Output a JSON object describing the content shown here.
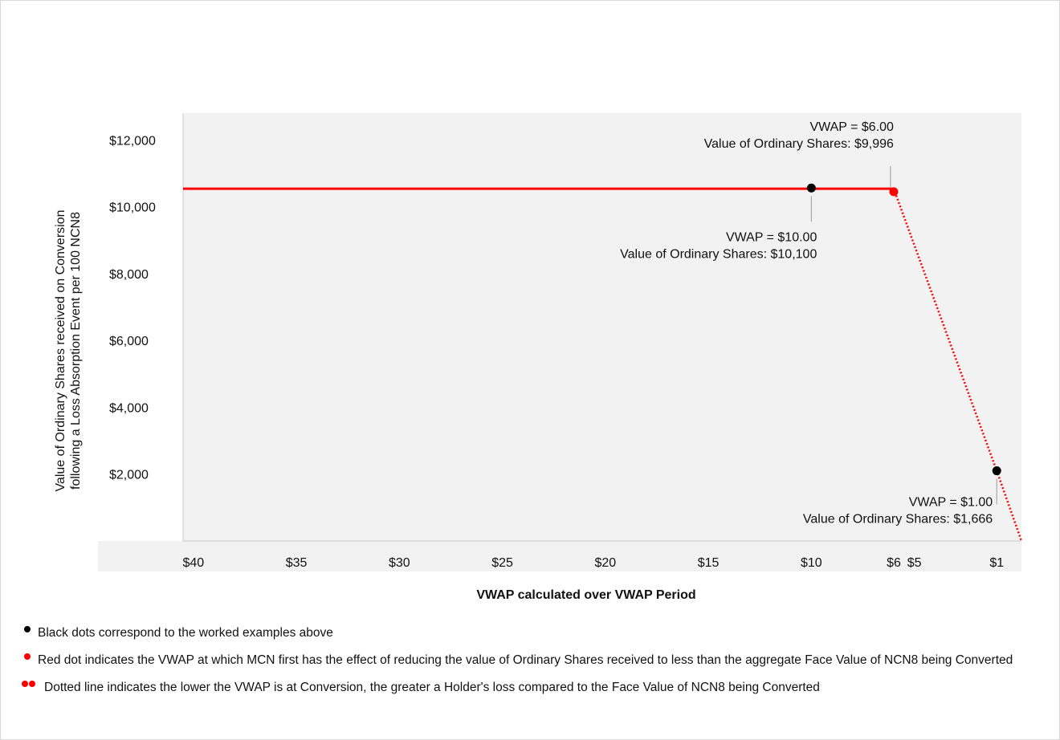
{
  "chart_data": {
    "type": "line",
    "xlabel": "VWAP calculated over VWAP Period",
    "ylabel": "Value of Ordinary Shares received on Conversion following a Loss Absorption Event per 100 NCN8",
    "x_tick_labels": [
      "$40",
      "$35",
      "$30",
      "$25",
      "$20",
      "$15",
      "$10",
      "$6",
      "$5",
      "$1"
    ],
    "x_tick_values": [
      40,
      35,
      30,
      25,
      20,
      15,
      10,
      6,
      5,
      1
    ],
    "x_axis_reversed": true,
    "xlim": [
      40.5,
      -0.2
    ],
    "y_tick_labels": [
      "$2,000",
      "$4,000",
      "$6,000",
      "$8,000",
      "$10,000",
      "$12,000"
    ],
    "y_tick_values": [
      2000,
      4000,
      6000,
      8000,
      10000,
      12000
    ],
    "ylim": [
      0,
      12800
    ],
    "grid": false,
    "plot_background": "#f2f2f2",
    "series": [
      {
        "style": "solid",
        "color": "#ff0000",
        "x": [
          40.5,
          6
        ],
        "y": [
          10540,
          10540
        ]
      },
      {
        "style": "dotted",
        "color": "#ff0000",
        "x": [
          6,
          1,
          -0.2
        ],
        "y": [
          10540,
          2100,
          0
        ]
      }
    ],
    "points": [
      {
        "x": 10,
        "y": 10560,
        "color": "#000000"
      },
      {
        "x": 6,
        "y": 10450,
        "color": "#ff0000"
      },
      {
        "x": 1,
        "y": 2100,
        "color": "#000000"
      }
    ],
    "annotations": [
      {
        "lines": [
          "VWAP = $6.00",
          "Value of Ordinary Shares: $9,996"
        ],
        "x": 6,
        "y": 10450,
        "position": "above-left"
      },
      {
        "lines": [
          "VWAP = $10.00",
          "Value of Ordinary Shares: $10,100"
        ],
        "x": 10,
        "y": 10560,
        "position": "below-right"
      },
      {
        "lines": [
          "VWAP = $1.00",
          "Value of Ordinary Shares: $1,666"
        ],
        "x": 1,
        "y": 2100,
        "position": "below-left"
      }
    ]
  },
  "notes": {
    "black": "Black dots correspond to the worked examples above",
    "red": "Red dot indicates the VWAP at which MCN first has the effect of reducing the value of Ordinary Shares received to less than the aggregate Face Value of NCN8 being Converted",
    "dotted": "Dotted line indicates the lower the VWAP is at Conversion, the greater a Holder's loss compared to the Face Value of NCN8 being Converted"
  }
}
